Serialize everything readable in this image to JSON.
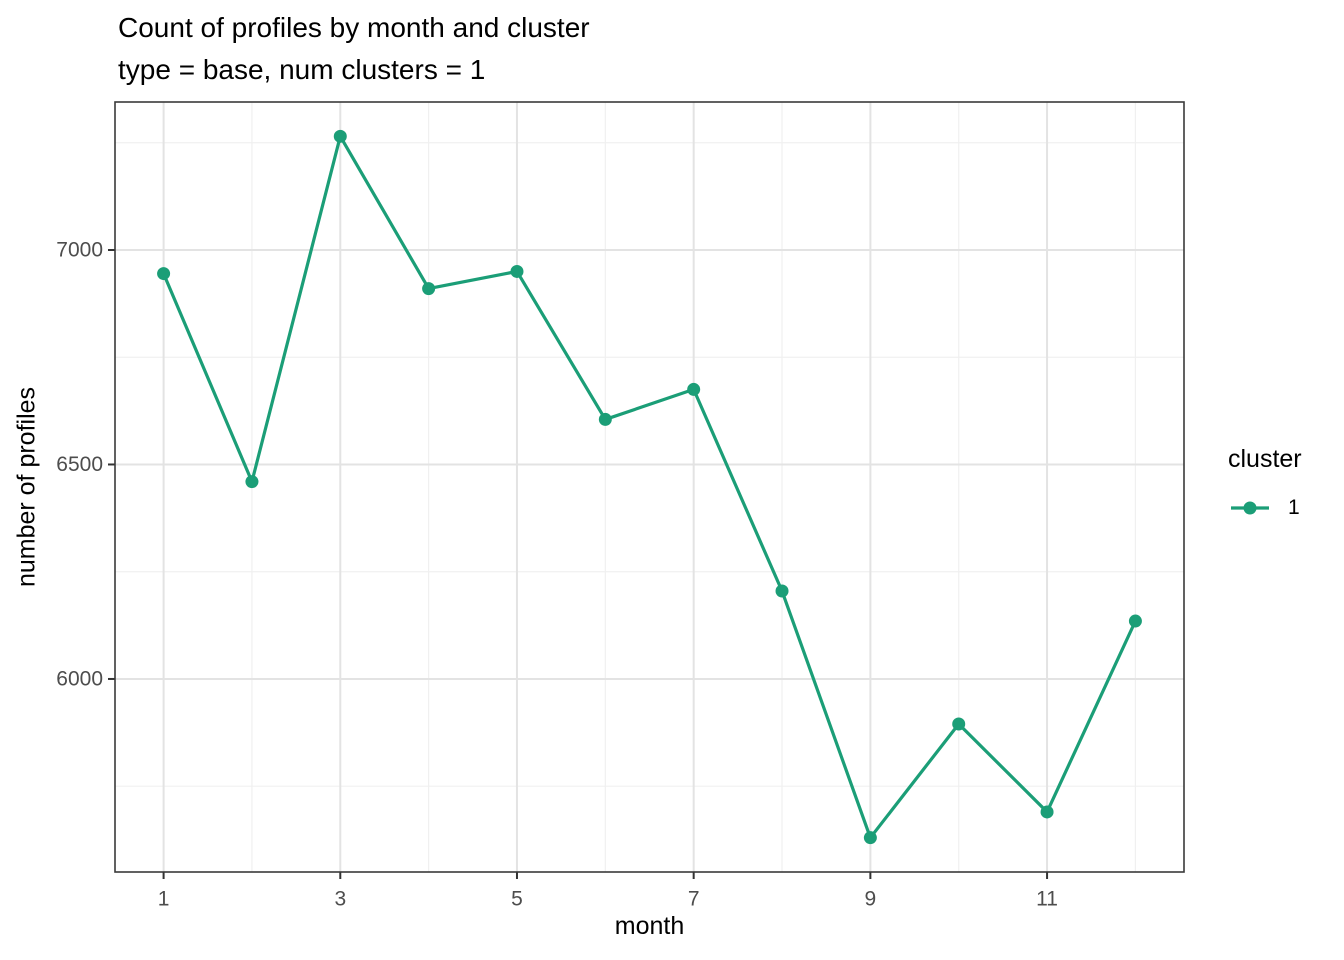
{
  "chart_data": {
    "type": "line",
    "title": "Count of profiles by month and cluster",
    "subtitle": "type = base, num clusters = 1",
    "xlabel": "month",
    "ylabel": "number of profiles",
    "x": [
      1,
      2,
      3,
      4,
      5,
      6,
      7,
      8,
      9,
      10,
      11,
      12
    ],
    "series": [
      {
        "name": "1",
        "color": "#1b9e77",
        "values": [
          6945,
          6460,
          7265,
          6910,
          6950,
          6605,
          6675,
          6205,
          5630,
          5895,
          5690,
          6135
        ]
      }
    ],
    "x_ticks": [
      1,
      3,
      5,
      7,
      9,
      11
    ],
    "x_minor_ticks": [
      2,
      4,
      6,
      8,
      10,
      12
    ],
    "y_ticks": [
      6000,
      6500,
      7000
    ],
    "y_minor_ticks": [
      5750,
      6250,
      6750,
      7250
    ],
    "x_domain": [
      0.45,
      12.55
    ],
    "y_domain": [
      5550,
      7345
    ],
    "grid": "major+minor",
    "legend": {
      "position": "right",
      "title": "cluster",
      "items": [
        {
          "label": "1",
          "color": "#1b9e77"
        }
      ]
    }
  },
  "colors": {
    "series": "#1b9e77",
    "grid_major": "#e3e3e3",
    "grid_minor": "#f0f0f0",
    "panel_border": "#3a3a3a",
    "tick": "#333333",
    "tick_label": "#4d4d4d",
    "title_text": "#000000"
  }
}
